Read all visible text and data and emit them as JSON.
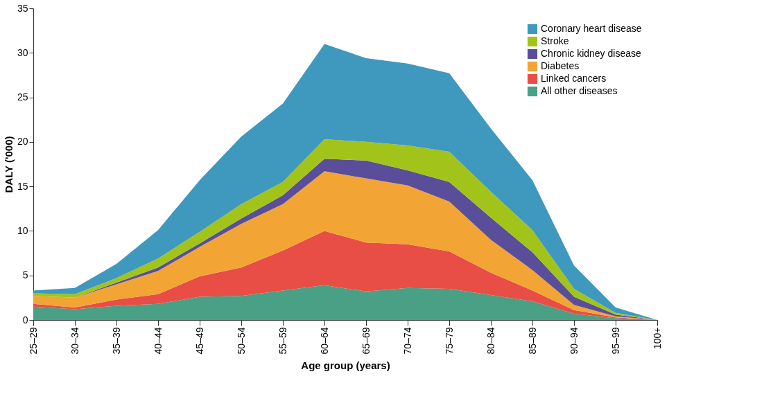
{
  "chart_data": {
    "type": "area",
    "stacked": true,
    "xlabel": "Age group (years)",
    "ylabel": "DALY ('000)",
    "categories": [
      "25–29",
      "30–34",
      "35–39",
      "40–44",
      "45–49",
      "50–54",
      "55–59",
      "60–64",
      "65–69",
      "70–74",
      "75–79",
      "80–84",
      "85–89",
      "90–94",
      "95–99",
      "100+"
    ],
    "series": [
      {
        "name": "All other diseases",
        "color": "#4aa084",
        "values": [
          1.5,
          1.2,
          1.6,
          1.8,
          2.6,
          2.7,
          3.3,
          3.9,
          3.2,
          3.6,
          3.5,
          2.8,
          2.1,
          0.7,
          0.2,
          0
        ]
      },
      {
        "name": "Linked cancers",
        "color": "#e84e45",
        "values": [
          0.3,
          0.2,
          0.7,
          1.1,
          2.3,
          3.2,
          4.5,
          6.1,
          5.5,
          4.9,
          4.2,
          2.5,
          1.2,
          0.4,
          0.1,
          0
        ]
      },
      {
        "name": "Diabetes",
        "color": "#f2a535",
        "values": [
          0.9,
          1.1,
          1.7,
          2.6,
          3.3,
          4.9,
          5.2,
          6.7,
          7.2,
          6.6,
          5.6,
          3.7,
          2.3,
          0.6,
          0.1,
          0
        ]
      },
      {
        "name": "Chronic kidney disease",
        "color": "#5a4e9a",
        "values": [
          0,
          0,
          0.2,
          0.4,
          0.4,
          0.6,
          1.0,
          1.4,
          2.0,
          1.7,
          2.2,
          2.5,
          2.0,
          0.9,
          0.2,
          0
        ]
      },
      {
        "name": "Stroke",
        "color": "#a2c41a",
        "values": [
          0.3,
          0.4,
          0.5,
          1.0,
          1.3,
          1.6,
          1.5,
          2.2,
          2.1,
          2.8,
          3.4,
          2.9,
          2.5,
          0.9,
          0.2,
          0
        ]
      },
      {
        "name": "Coronary heart disease",
        "color": "#3f98bd",
        "values": [
          0.3,
          0.7,
          1.6,
          3.2,
          5.8,
          7.6,
          8.8,
          10.7,
          9.4,
          9.2,
          8.8,
          7.1,
          5.6,
          2.6,
          0.6,
          0
        ]
      }
    ],
    "ylim": [
      0,
      35
    ],
    "yticks": [
      0,
      5,
      10,
      15,
      20,
      25,
      30,
      35
    ],
    "grid": false,
    "legend": "top right"
  }
}
